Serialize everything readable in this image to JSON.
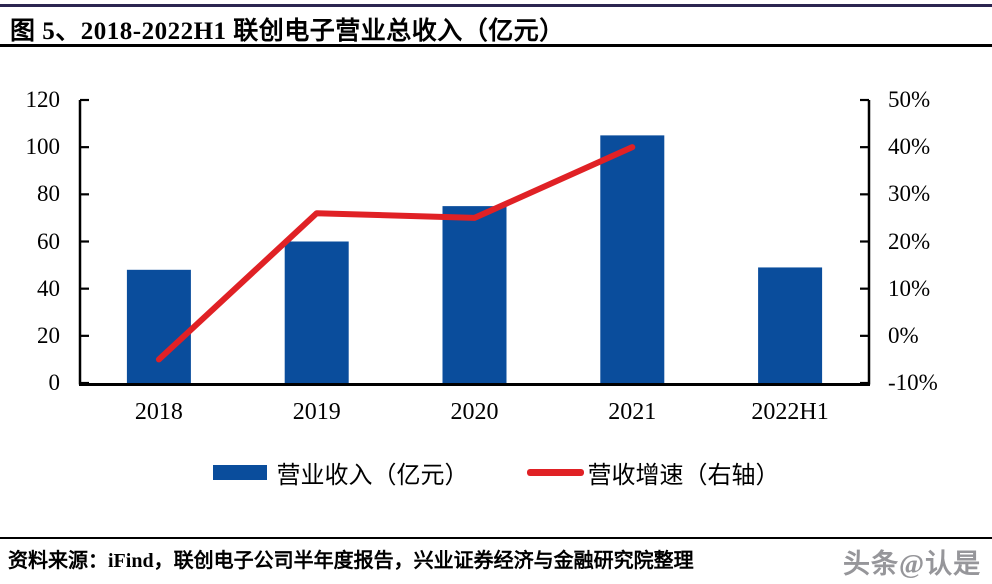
{
  "header": {
    "title": "图 5、2018-2022H1 联创电子营业总收入（亿元）"
  },
  "chart_data": {
    "type": "bar",
    "title": "2018-2022H1 联创电子营业总收入（亿元）",
    "categories": [
      "2018",
      "2019",
      "2020",
      "2021",
      "2022H1"
    ],
    "series": [
      {
        "name": "营业收入（亿元）",
        "type": "bar",
        "axis": "left",
        "values": [
          48,
          60,
          75,
          105,
          49
        ]
      },
      {
        "name": "营收增速（右轴）",
        "type": "line",
        "axis": "right",
        "values": [
          -5,
          26,
          25,
          40
        ],
        "note": "percent, no point for 2022H1"
      }
    ],
    "left_axis": {
      "min": 0,
      "max": 120,
      "step": 20,
      "tick_labels": [
        "0",
        "20",
        "40",
        "60",
        "80",
        "100",
        "120"
      ]
    },
    "right_axis": {
      "min": -10,
      "max": 50,
      "step": 10,
      "tick_labels": [
        "-10%",
        "0%",
        "10%",
        "20%",
        "30%",
        "40%",
        "50%"
      ]
    },
    "grid": false,
    "legend_position": "bottom"
  },
  "legend": {
    "bar_label": "营业收入（亿元）",
    "line_label": "营收增速（右轴）"
  },
  "footer": {
    "source": "资料来源：iFind，联创电子公司半年度报告，兴业证券经济与金融研究院整理",
    "watermark": "头条@认是"
  },
  "colors": {
    "bar": "#0a4d9c",
    "line": "#e02125",
    "top_rule": "#2b2550",
    "axis": "#000000",
    "watermark": "#96969a"
  }
}
